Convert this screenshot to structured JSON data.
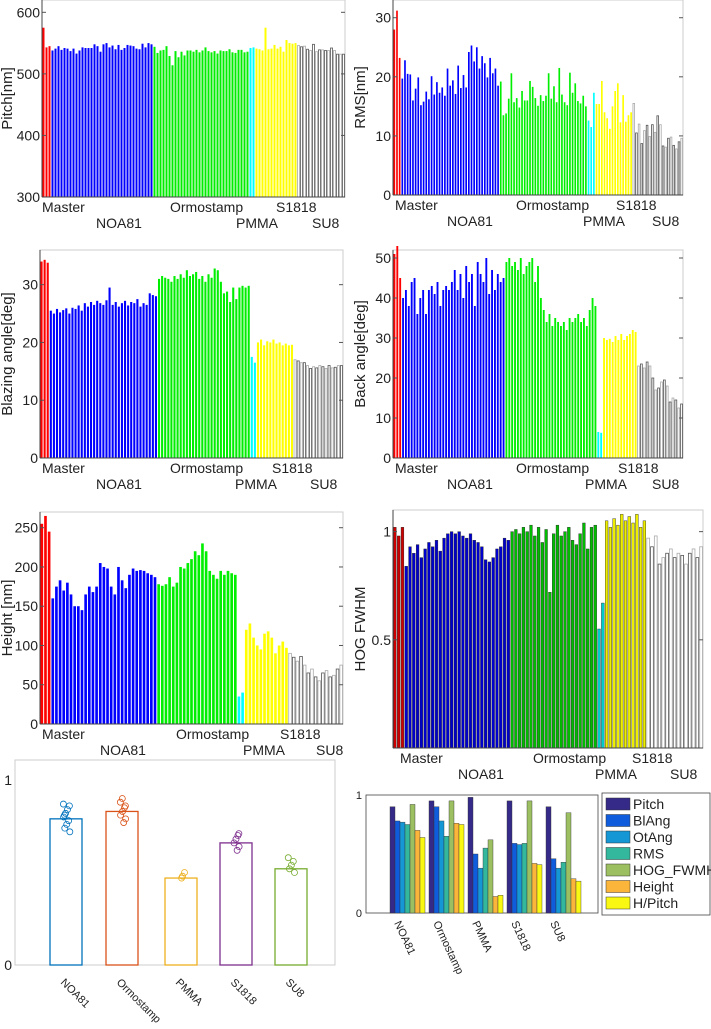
{
  "chart_data": [
    {
      "type": "bar",
      "ylabel": "Pitch[nm]",
      "ylim": [
        300,
        620
      ],
      "yticks": [
        300,
        400,
        500,
        600
      ],
      "groups": [
        {
          "name": "Master",
          "color": "#ff0000",
          "values": [
            575,
            543,
            545
          ]
        },
        {
          "name": "NOA81",
          "color": "#0000ff",
          "values": [
            538,
            541,
            545,
            539,
            542,
            541,
            537,
            541,
            533,
            538,
            543,
            542,
            542,
            542,
            548,
            545,
            536,
            548,
            550,
            543,
            546,
            540,
            547,
            539,
            542,
            547,
            546,
            545,
            541,
            540,
            549,
            543,
            550,
            548
          ]
        },
        {
          "name": "Ormostamp",
          "color": "#00ee00",
          "values": [
            544,
            534,
            538,
            539,
            545,
            529,
            514,
            537,
            527,
            536,
            530,
            538,
            538,
            536,
            539,
            535,
            538,
            543,
            537,
            535,
            537,
            533,
            538,
            537,
            537,
            540,
            535,
            534,
            539,
            539,
            535,
            536
          ]
        },
        {
          "name": "PMMA",
          "color": "#00ffff",
          "values": [
            542,
            543
          ]
        },
        {
          "name": "S1818",
          "color": "#ffff00",
          "values": [
            541,
            540,
            538,
            575,
            540,
            541,
            547,
            541,
            544,
            536,
            555,
            550,
            549,
            550
          ]
        },
        {
          "name": "SU8",
          "color": "#ffffff",
          "values": [
            546,
            544,
            545,
            540,
            538,
            548,
            536,
            539,
            539,
            538,
            538,
            542,
            538,
            532,
            532,
            532
          ]
        }
      ]
    },
    {
      "type": "bar",
      "ylabel": "RMS[nm]",
      "ylim": [
        0,
        33
      ],
      "yticks": [
        0,
        10,
        20,
        30
      ],
      "groups": [
        {
          "name": "Master",
          "color": "#ff0000",
          "values": [
            28,
            31.2,
            23.2
          ]
        },
        {
          "name": "NOA81",
          "color": "#0000ff",
          "values": [
            19.7,
            22.8,
            20.5,
            20.4,
            16,
            18,
            19.9,
            15.2,
            15.8,
            17.5,
            16.2,
            20.1,
            17,
            19.1,
            17.3,
            18.2,
            16.8,
            21.4,
            18.5,
            19.4,
            17.1,
            21.9,
            18.1,
            20.3,
            18.2,
            24.2,
            25.3,
            22.6,
            25,
            21.4,
            23.5,
            22.3,
            19.9,
            23.2,
            20.6,
            21.4,
            18.5
          ]
        },
        {
          "name": "Ormostamp",
          "color": "#00ee00",
          "values": [
            19.2,
            13.5,
            13.8,
            16.3,
            20.6,
            15.7,
            16.4,
            14.8,
            17.6,
            16,
            16,
            19.3,
            18.3,
            16.4,
            15.1,
            16.9,
            15.9,
            16.8,
            20.6,
            16.3,
            18.4,
            15.7,
            21.5,
            17,
            15.7,
            15.2,
            20.7,
            17.3,
            18.9,
            15.9,
            15.5,
            16.8,
            15
          ]
        },
        {
          "name": "PMMA",
          "color": "#00ffff",
          "values": [
            12.6,
            11.5,
            17.3
          ]
        },
        {
          "name": "S1818",
          "color": "#ffff00",
          "values": [
            15.4,
            15.4,
            19.3,
            14,
            13,
            11.2,
            15,
            17.6,
            18.9,
            12.3,
            16.9,
            12.4,
            13.5,
            14
          ]
        },
        {
          "name": "SU8",
          "color": "#ffffff",
          "values": [
            15.5,
            10.5,
            12,
            8.7,
            10.9,
            11.8,
            9.9,
            11.9,
            10.6,
            13.4,
            11.9,
            8.3,
            8.1,
            9.6,
            9.8,
            8.4,
            7.8,
            9,
            9.6
          ]
        }
      ]
    },
    {
      "type": "bar",
      "ylabel": "Blazing angle[deg]",
      "ylim": [
        0,
        36
      ],
      "yticks": [
        0,
        10,
        20,
        30
      ],
      "groups": [
        {
          "name": "Master",
          "color": "#ff0000",
          "values": [
            34,
            34.3,
            33.8
          ]
        },
        {
          "name": "NOA81",
          "color": "#0000ff",
          "values": [
            25.5,
            25,
            25.8,
            25.2,
            25.6,
            25.9,
            25,
            26,
            25.8,
            26.4,
            25.5,
            26.8,
            26.2,
            27,
            26.5,
            27.2,
            26.8,
            26.5,
            27.3,
            29.5,
            26.5,
            27,
            26.2,
            26.8,
            27.2,
            26.4,
            27,
            26.8,
            27.5,
            26.2,
            26.8,
            26.5,
            28.5,
            28.2,
            28
          ]
        },
        {
          "name": "Ormostamp",
          "color": "#00ee00",
          "values": [
            31,
            31.5,
            31.2,
            31,
            30.5,
            31.5,
            31,
            31.8,
            31.2,
            32.5,
            31.5,
            31.8,
            32.2,
            31,
            31.5,
            30.5,
            31.8,
            31.2,
            32.8,
            32.5,
            30.5,
            28.5,
            28.8,
            27,
            29.5,
            27.5,
            29.5,
            29.8,
            29.5,
            29.8
          ]
        },
        {
          "name": "PMMA",
          "color": "#00ffff",
          "values": [
            17.5,
            16.5
          ]
        },
        {
          "name": "S1818",
          "color": "#ffff00",
          "values": [
            20,
            20.5,
            19.5,
            20.2,
            20,
            20.5,
            19.8,
            20,
            19.5,
            19.8,
            19.5,
            19.6
          ]
        },
        {
          "name": "SU8",
          "color": "#ffffff",
          "values": [
            17,
            16.8,
            16.5,
            16.5,
            16,
            15.5,
            15.8,
            15.6,
            16,
            15.8,
            15.5,
            16,
            15.6,
            15.7,
            16,
            16
          ]
        }
      ]
    },
    {
      "type": "bar",
      "ylabel": "Back angle[deg]",
      "ylim": [
        0,
        52
      ],
      "yticks": [
        0,
        10,
        20,
        30,
        40,
        50
      ],
      "groups": [
        {
          "name": "Master",
          "color": "#ff0000",
          "values": [
            51,
            53,
            45
          ]
        },
        {
          "name": "NOA81",
          "color": "#0000ff",
          "values": [
            40,
            42,
            38,
            44,
            45,
            36,
            40,
            42,
            36,
            42,
            43,
            41,
            44,
            38,
            42,
            43,
            42,
            44,
            47,
            42,
            46,
            40,
            48,
            44,
            46,
            38,
            49,
            46,
            44,
            50,
            41,
            47,
            42,
            46,
            44,
            45
          ]
        },
        {
          "name": "Ormostamp",
          "color": "#00ee00",
          "values": [
            49,
            50,
            48,
            49,
            47,
            50,
            46,
            48,
            49,
            50,
            44,
            48,
            40,
            37,
            34,
            36,
            33,
            35,
            34,
            33,
            34,
            32,
            35,
            34,
            35,
            36,
            34,
            35,
            33,
            37,
            40,
            38
          ]
        },
        {
          "name": "PMMA",
          "color": "#00ffff",
          "values": [
            6.5,
            6.3
          ]
        },
        {
          "name": "S1818",
          "color": "#ffff00",
          "values": [
            30,
            29.5,
            29.8,
            29,
            30.5,
            29.5,
            31,
            29.5,
            30.5,
            31,
            32,
            31.5
          ]
        },
        {
          "name": "SU8",
          "color": "#ffffff",
          "values": [
            23,
            23.5,
            22.5,
            24,
            23,
            20,
            17,
            17.5,
            19,
            19.5,
            18,
            14,
            15,
            14.5,
            12.5,
            13.5
          ]
        }
      ]
    },
    {
      "type": "bar",
      "ylabel": "Height [nm]",
      "ylim": [
        0,
        270
      ],
      "yticks": [
        0,
        50,
        100,
        150,
        200,
        250
      ],
      "groups": [
        {
          "name": "Master",
          "color": "#ff0000",
          "values": [
            255,
            265,
            245
          ]
        },
        {
          "name": "NOA81",
          "color": "#0000ff",
          "values": [
            160,
            175,
            183,
            170,
            180,
            165,
            150,
            150,
            145,
            165,
            175,
            168,
            175,
            205,
            200,
            198,
            175,
            165,
            200,
            183,
            173,
            190,
            198,
            195,
            196,
            195,
            192,
            190,
            187
          ]
        },
        {
          "name": "Ormostamp",
          "color": "#00ee00",
          "values": [
            178,
            176,
            178,
            187,
            175,
            180,
            200,
            198,
            205,
            210,
            220,
            215,
            230,
            220,
            195,
            190,
            185,
            195,
            190,
            195,
            192,
            190
          ]
        },
        {
          "name": "PMMA",
          "color": "#00ffff",
          "values": [
            35,
            40
          ]
        },
        {
          "name": "S1818",
          "color": "#ffff00",
          "values": [
            120,
            128,
            110,
            100,
            95,
            115,
            118,
            110,
            90,
            100,
            105,
            97
          ]
        },
        {
          "name": "SU8",
          "color": "#ffffff",
          "values": [
            90,
            85,
            80,
            86,
            75,
            65,
            70,
            60,
            55,
            65,
            68,
            60,
            62,
            70,
            75
          ]
        }
      ]
    },
    {
      "type": "bar",
      "ylabel": "HOG FWHM",
      "ylim": [
        0,
        1.1
      ],
      "yticks": [
        0.5,
        1
      ],
      "groups": [
        {
          "name": "Master",
          "color": "#cc0000",
          "values": [
            1.02,
            0.98,
            1.02
          ]
        },
        {
          "name": "NOA81",
          "color": "#0000cc",
          "values": [
            0.84,
            0.93,
            0.9,
            0.94,
            0.88,
            0.92,
            0.95,
            0.93,
            0.96,
            0.91,
            0.97,
            0.99,
            1.0,
            0.99,
            1.0,
            0.98,
            0.97,
            0.99,
            0.96,
            0.95,
            0.93,
            0.87,
            0.86,
            0.88,
            0.92,
            0.93,
            0.97,
            0.96
          ]
        },
        {
          "name": "Ormostamp",
          "color": "#00bb00",
          "values": [
            1.0,
            1.01,
            0.99,
            1.02,
            1.0,
            1.03,
            0.98,
            1.02,
            0.95,
            1.01,
            0.72,
            0.99,
            1.03,
            0.98,
            1.0,
            1.02,
            0.96,
            0.94,
            0.99,
            1.04,
            0.92,
            1.02,
            1.03
          ]
        },
        {
          "name": "PMMA",
          "color": "#00cccc",
          "values": [
            0.55,
            0.67
          ]
        },
        {
          "name": "S1818",
          "color": "#eeee00",
          "values": [
            1.05,
            1.02,
            1.06,
            1.03,
            1.08,
            1.05,
            1.07,
            1.04,
            1.08,
            1.02,
            1.05
          ]
        },
        {
          "name": "SU8",
          "color": "#ffffff",
          "values": [
            0.97,
            0.93,
            0.98,
            0.85,
            0.88,
            0.9,
            0.92,
            0.88,
            0.9,
            0.89,
            0.85,
            0.9,
            0.92,
            0.88,
            0.93
          ]
        }
      ]
    },
    {
      "type": "bar",
      "ylim": [
        0,
        1
      ],
      "yticks": [
        0,
        1
      ],
      "categories": [
        "NOA81",
        "Ormostamp",
        "PMMA",
        "S1818",
        "SU8"
      ],
      "values": [
        0.79,
        0.83,
        0.47,
        0.66,
        0.52
      ],
      "colors": [
        "#0072bd",
        "#d95319",
        "#edb120",
        "#7e2f8e",
        "#77ac30"
      ],
      "points": [
        [
          0.72,
          0.74,
          0.76,
          0.78,
          0.8,
          0.81,
          0.82,
          0.84,
          0.86,
          0.87
        ],
        [
          0.77,
          0.79,
          0.81,
          0.83,
          0.85,
          0.86,
          0.88,
          0.9
        ],
        [
          0.47,
          0.48,
          0.5
        ],
        [
          0.62,
          0.64,
          0.66,
          0.68,
          0.7,
          0.71
        ],
        [
          0.5,
          0.52,
          0.54,
          0.56,
          0.58
        ]
      ]
    },
    {
      "type": "bar",
      "ylim": [
        0,
        1
      ],
      "yticks": [
        0,
        1
      ],
      "categories": [
        "NOA81",
        "Ormostamp",
        "PMMA",
        "S1818",
        "SU8"
      ],
      "legend_position": "right",
      "series": [
        {
          "name": "Pitch",
          "color": "#352a87",
          "values": [
            0.9,
            0.95,
            0.98,
            0.95,
            0.9
          ]
        },
        {
          "name": "BlAng",
          "color": "#0f5cdd",
          "values": [
            0.78,
            0.9,
            0.5,
            0.59,
            0.46
          ]
        },
        {
          "name": "OtAng",
          "color": "#1497d4",
          "values": [
            0.77,
            0.78,
            0.38,
            0.58,
            0.38
          ]
        },
        {
          "name": "RMS",
          "color": "#33b89e",
          "values": [
            0.75,
            0.65,
            0.55,
            0.59,
            0.43
          ]
        },
        {
          "name": "HOG_FWMH",
          "color": "#9cbf62",
          "values": [
            0.92,
            0.95,
            0.62,
            0.95,
            0.85
          ]
        },
        {
          "name": "Height",
          "color": "#fbb53a",
          "values": [
            0.7,
            0.76,
            0.14,
            0.42,
            0.29
          ]
        },
        {
          "name": "H/Pitch",
          "color": "#f8f812",
          "values": [
            0.64,
            0.75,
            0.15,
            0.41,
            0.27
          ]
        }
      ]
    }
  ]
}
